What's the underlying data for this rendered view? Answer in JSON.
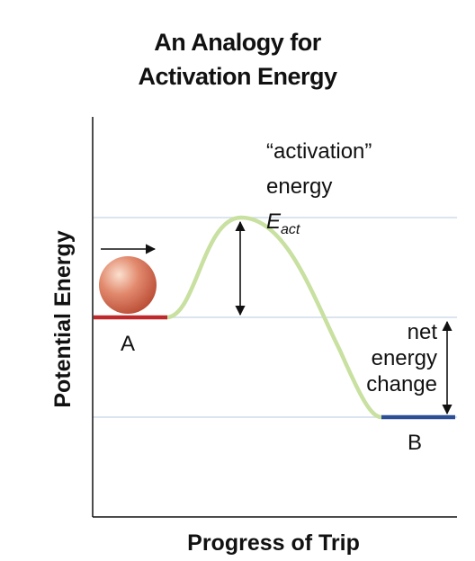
{
  "title": {
    "line1": "An Analogy for",
    "line2": "Activation Energy"
  },
  "axes": {
    "x_label": "Progress of Trip",
    "y_label": "Potential Energy"
  },
  "labels": {
    "state_a": "A",
    "state_b": "B",
    "activation_line1": "“activation”",
    "activation_line2": "energy",
    "eact_symbol": "E",
    "eact_subscript": "act",
    "net_line1": "net",
    "net_line2": "energy",
    "net_line3": "change"
  },
  "colors": {
    "curve": "#c8e0a0",
    "state_a_line": "#c0292b",
    "state_b_line": "#2c4e96",
    "gridline": "#cfdcea",
    "ball": "#d9705a"
  },
  "icons": {
    "ball": "ball-icon",
    "motion_arrow": "right-arrow-icon"
  }
}
